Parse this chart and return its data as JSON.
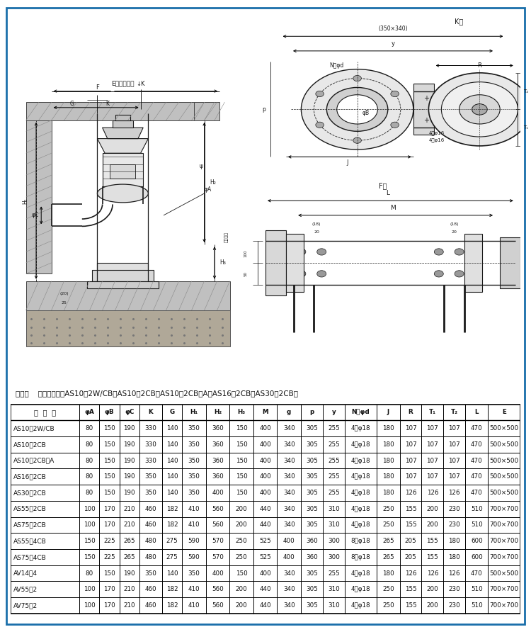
{
  "note_text": "注：（    ）内尺寸适用AS10－2W/CB、AS10－2CB、AS10－2CB－A、AS16－2CB、AS30－2CB。",
  "header": [
    "泵  型  号",
    "φA",
    "φB",
    "φC",
    "K",
    "G",
    "H₁",
    "H₂",
    "H₃",
    "M",
    "g",
    "p",
    "y",
    "N－φd",
    "J",
    "R",
    "T₁",
    "T₂",
    "L",
    "E"
  ],
  "rows": [
    [
      "AS10－2W/CB",
      "80",
      "150",
      "190",
      "330",
      "140",
      "350",
      "360",
      "150",
      "400",
      "340",
      "305",
      "255",
      "4－φ18",
      "180",
      "107",
      "107",
      "107",
      "470",
      "500×500"
    ],
    [
      "AS10－2CB",
      "80",
      "150",
      "190",
      "330",
      "140",
      "350",
      "360",
      "150",
      "400",
      "340",
      "305",
      "255",
      "4－φ18",
      "180",
      "107",
      "107",
      "107",
      "470",
      "500×500"
    ],
    [
      "AS10－2CB－A",
      "80",
      "150",
      "190",
      "330",
      "140",
      "350",
      "360",
      "150",
      "400",
      "340",
      "305",
      "255",
      "4－φ18",
      "180",
      "107",
      "107",
      "107",
      "470",
      "500×500"
    ],
    [
      "AS16－2CB",
      "80",
      "150",
      "190",
      "350",
      "140",
      "350",
      "360",
      "150",
      "400",
      "340",
      "305",
      "255",
      "4－φ18",
      "180",
      "107",
      "107",
      "107",
      "470",
      "500×500"
    ],
    [
      "AS30－2CB",
      "80",
      "150",
      "190",
      "350",
      "140",
      "350",
      "400",
      "150",
      "400",
      "340",
      "305",
      "255",
      "4－φ18",
      "180",
      "126",
      "126",
      "126",
      "470",
      "500×500"
    ],
    [
      "AS55－2CB",
      "100",
      "170",
      "210",
      "460",
      "182",
      "410",
      "560",
      "200",
      "440",
      "340",
      "305",
      "310",
      "4－φ18",
      "250",
      "155",
      "200",
      "230",
      "510",
      "700×700"
    ],
    [
      "AS75－2CB",
      "100",
      "170",
      "210",
      "460",
      "182",
      "410",
      "560",
      "200",
      "440",
      "340",
      "305",
      "310",
      "4－φ18",
      "250",
      "155",
      "200",
      "230",
      "510",
      "700×700"
    ],
    [
      "AS55－4CB",
      "150",
      "225",
      "265",
      "480",
      "275",
      "590",
      "570",
      "250",
      "525",
      "400",
      "360",
      "300",
      "8－φ18",
      "265",
      "205",
      "155",
      "180",
      "600",
      "700×700"
    ],
    [
      "AS75－4CB",
      "150",
      "225",
      "265",
      "480",
      "275",
      "590",
      "570",
      "250",
      "525",
      "400",
      "360",
      "300",
      "8－φ18",
      "265",
      "205",
      "155",
      "180",
      "600",
      "700×700"
    ],
    [
      "AV14－4",
      "80",
      "150",
      "190",
      "350",
      "140",
      "350",
      "400",
      "150",
      "400",
      "340",
      "305",
      "255",
      "4－φ18",
      "180",
      "126",
      "126",
      "126",
      "470",
      "500×500"
    ],
    [
      "AV55－2",
      "100",
      "170",
      "210",
      "460",
      "182",
      "410",
      "560",
      "200",
      "440",
      "340",
      "305",
      "310",
      "4－φ18",
      "250",
      "155",
      "200",
      "230",
      "510",
      "700×700"
    ],
    [
      "AV75－2",
      "100",
      "170",
      "210",
      "460",
      "182",
      "410",
      "560",
      "200",
      "440",
      "340",
      "305",
      "310",
      "4－φ18",
      "250",
      "155",
      "200",
      "230",
      "510",
      "700×700"
    ]
  ],
  "col_widths": [
    1.45,
    0.42,
    0.42,
    0.42,
    0.48,
    0.42,
    0.5,
    0.5,
    0.5,
    0.5,
    0.5,
    0.46,
    0.46,
    0.68,
    0.48,
    0.46,
    0.46,
    0.46,
    0.48,
    0.68
  ],
  "border_color": "#1a6faa",
  "table_border_color": "#000000",
  "background_color": "#ffffff",
  "fig_width": 7.5,
  "fig_height": 8.92,
  "diagram_bg": "#ffffff",
  "lc": "#1a1a1a"
}
